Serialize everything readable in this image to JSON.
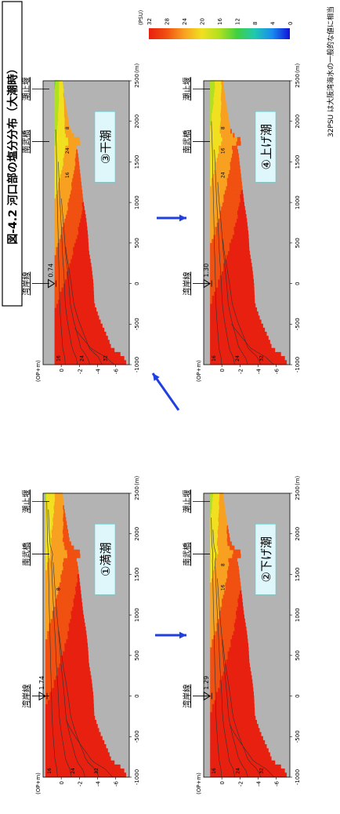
{
  "title": "図-4.2  河口部の塩分分布（大潮時）",
  "note": "32PSU は大阪湾海水の一般的な値に相当",
  "colors": {
    "background": "#b3b3b3",
    "arrow": "#1f3fe0",
    "ramp": [
      "#1010d8",
      "#1a8cf0",
      "#20c8b0",
      "#40d040",
      "#b0e020",
      "#f0e020",
      "#f8a020",
      "#f05010",
      "#e82010"
    ]
  },
  "colorbar": {
    "ticks": [
      "0",
      "4",
      "8",
      "12",
      "16",
      "20",
      "24",
      "28",
      "32"
    ],
    "unit": "(PSU)",
    "vmin": 0,
    "vmax": 32
  },
  "landmarks": {
    "shoreline": "湾岸線",
    "bridge": "南武橋",
    "weir": "潮止堰"
  },
  "axis": {
    "ylabel": "(OP+m)",
    "yticks": [
      "0",
      "-2",
      "-4",
      "-6"
    ],
    "xticks": [
      "-1000",
      "-500",
      "0",
      "500",
      "1000",
      "1500",
      "2000",
      "2500"
    ],
    "xunit": "(m)"
  },
  "chart_data": [
    {
      "type": "heatmap",
      "panel": "①満潮",
      "water_level_label": "1.74",
      "water_level": 1.74,
      "xlim": [
        -1000,
        2500
      ],
      "ylim": [
        -7.5,
        2
      ],
      "contour_labels": [
        "16",
        "24",
        "32",
        "8"
      ],
      "isohalines": [
        {
          "value": 8,
          "x_end": 2400
        },
        {
          "value": 16,
          "x_end": 2300
        },
        {
          "value": 24,
          "x_end": 1650
        },
        {
          "value": 28,
          "x_end": 800
        },
        {
          "value": 32,
          "x_end": -300
        }
      ]
    },
    {
      "type": "heatmap",
      "panel": "②下げ潮",
      "water_level_label": "1.29",
      "water_level": 1.29,
      "xlim": [
        -1000,
        2500
      ],
      "ylim": [
        -7.5,
        2
      ],
      "contour_labels": [
        "16",
        "24",
        "32",
        "16",
        "8"
      ],
      "isohalines": [
        {
          "value": 8,
          "x_end": 2200
        },
        {
          "value": 16,
          "x_end": 2050
        },
        {
          "value": 24,
          "x_end": 1450
        },
        {
          "value": 28,
          "x_end": 700
        },
        {
          "value": 32,
          "x_end": -350
        }
      ]
    },
    {
      "type": "heatmap",
      "panel": "③干潮",
      "water_level_label": "0.74",
      "water_level": 0.74,
      "xlim": [
        -1000,
        2500
      ],
      "ylim": [
        -7.5,
        2
      ],
      "contour_labels": [
        "16",
        "24",
        "32",
        "16",
        "24",
        "8"
      ],
      "isohalines": [
        {
          "value": 8,
          "x_end": 1900
        },
        {
          "value": 16,
          "x_end": 1500
        },
        {
          "value": 24,
          "x_end": 1050
        },
        {
          "value": 28,
          "x_end": 450
        },
        {
          "value": 32,
          "x_end": -550
        }
      ]
    },
    {
      "type": "heatmap",
      "panel": "④上げ潮",
      "water_level_label": "1.30",
      "water_level": 1.3,
      "xlim": [
        -1000,
        2500
      ],
      "ylim": [
        -7.5,
        2
      ],
      "contour_labels": [
        "16",
        "24",
        "32",
        "24",
        "16",
        "8"
      ],
      "isohalines": [
        {
          "value": 8,
          "x_end": 2000
        },
        {
          "value": 16,
          "x_end": 1650
        },
        {
          "value": 24,
          "x_end": 1250
        },
        {
          "value": 28,
          "x_end": 550
        },
        {
          "value": 32,
          "x_end": -500
        }
      ]
    }
  ]
}
